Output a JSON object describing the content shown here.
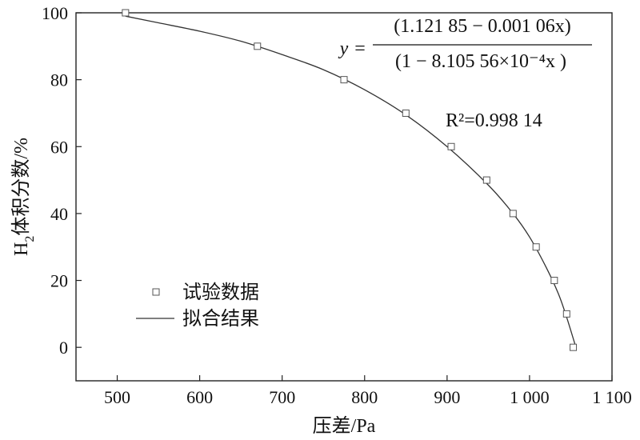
{
  "chart_data": {
    "type": "scatter",
    "xlabel": "压差/Pa",
    "ylabel_main": "H",
    "ylabel_sub": "2",
    "ylabel_rest": "体积分数/%",
    "xlim": [
      450,
      1100
    ],
    "ylim": [
      -10,
      100
    ],
    "x_ticks": [
      500,
      600,
      700,
      800,
      900,
      1000,
      1100
    ],
    "x_tick_labels": [
      "500",
      "600",
      "700",
      "800",
      "900",
      "1 000",
      "1 100"
    ],
    "y_ticks": [
      0,
      20,
      40,
      60,
      80,
      100
    ],
    "y_tick_labels": [
      "0",
      "20",
      "40",
      "60",
      "80",
      "100"
    ],
    "series": [
      {
        "name": "试验数据",
        "kind": "points",
        "x": [
          510,
          670,
          775,
          850,
          905,
          948,
          980,
          1008,
          1030,
          1045,
          1053
        ],
        "y": [
          100,
          90,
          80,
          70,
          60,
          50,
          40,
          30,
          20,
          10,
          0
        ]
      },
      {
        "name": "拟合结果",
        "kind": "line",
        "x": [
          510,
          550,
          600,
          650,
          700,
          750,
          800,
          850,
          900,
          950,
          980,
          1000,
          1020,
          1035,
          1045,
          1055
        ],
        "y": [
          99,
          97,
          94.5,
          91.5,
          87.5,
          83,
          77,
          69.5,
          60,
          48.5,
          40,
          33,
          24,
          16,
          9,
          1
        ]
      }
    ],
    "annotations": {
      "eq_y": "y",
      "eq_equals": "=",
      "eq_numerator": "(1.121 85 − 0.001 06x)",
      "eq_denominator": "(1 − 8.105 56×10⁻⁴x )",
      "r2_label": "R²=0.998 14"
    },
    "legend_position": "lower-left"
  }
}
